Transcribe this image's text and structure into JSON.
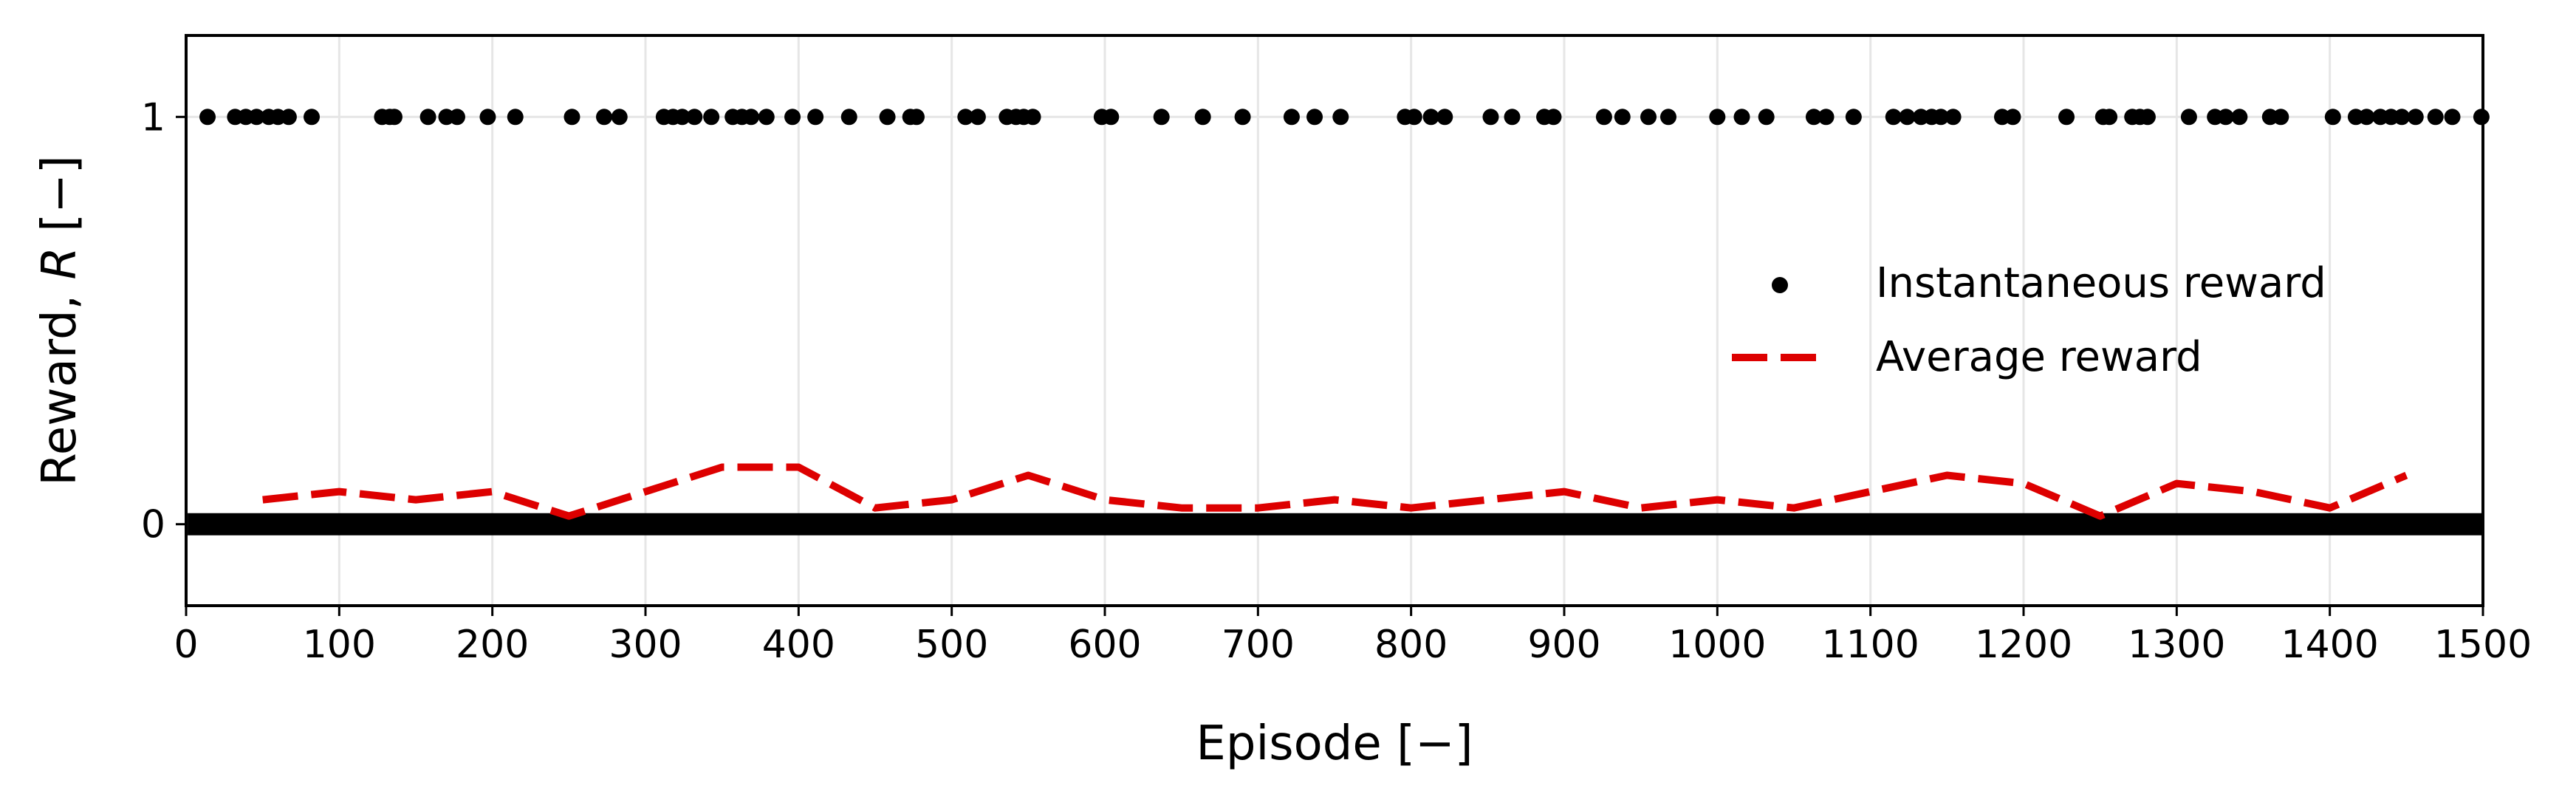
{
  "chart_data": {
    "type": "scatter",
    "xlabel": "Episode [−]",
    "ylabel_prefix": "Reward, ",
    "ylabel_symbol": "R",
    "ylabel_suffix": " [−]",
    "xlim": [
      0,
      1500
    ],
    "ylim": [
      -0.2,
      1.2
    ],
    "xticks": [
      0,
      100,
      200,
      300,
      400,
      500,
      600,
      700,
      800,
      900,
      1000,
      1100,
      1200,
      1300,
      1400,
      1500
    ],
    "yticks": [
      0,
      1
    ],
    "grid": true,
    "legend_position": "center-right",
    "colors": {
      "instant": "#000000",
      "average": "#dd0000",
      "grid": "#e6e6e6"
    },
    "series": [
      {
        "name": "Instantaneous reward",
        "kind": "scatter",
        "color": "#000000",
        "reward_one_episodes": [
          14,
          32,
          39,
          46,
          54,
          60,
          67,
          82,
          128,
          133,
          136,
          158,
          170,
          177,
          197,
          215,
          252,
          273,
          283,
          312,
          318,
          324,
          332,
          343,
          357,
          363,
          369,
          379,
          396,
          411,
          433,
          458,
          473,
          477,
          509,
          517,
          536,
          542,
          547,
          553,
          598,
          604,
          637,
          664,
          690,
          722,
          737,
          754,
          796,
          802,
          813,
          822,
          852,
          866,
          887,
          893,
          926,
          938,
          955,
          968,
          1000,
          1016,
          1032,
          1063,
          1071,
          1089,
          1115,
          1124,
          1133,
          1140,
          1146,
          1154,
          1186,
          1193,
          1228,
          1252,
          1256,
          1271,
          1276,
          1281,
          1308,
          1325,
          1332,
          1341,
          1361,
          1368,
          1402,
          1417,
          1424,
          1433,
          1440,
          1447,
          1456,
          1469,
          1480,
          1499
        ],
        "reward_zero_range": [
          1,
          1500
        ]
      },
      {
        "name": "Average reward",
        "kind": "line",
        "color": "#dd0000",
        "x": [
          50,
          100,
          150,
          200,
          250,
          300,
          350,
          400,
          450,
          500,
          550,
          600,
          650,
          700,
          750,
          800,
          850,
          900,
          950,
          1000,
          1050,
          1100,
          1150,
          1200,
          1250,
          1300,
          1350,
          1400,
          1450
        ],
        "y": [
          0.06,
          0.08,
          0.06,
          0.08,
          0.02,
          0.08,
          0.14,
          0.14,
          0.04,
          0.06,
          0.12,
          0.06,
          0.04,
          0.04,
          0.06,
          0.04,
          0.06,
          0.08,
          0.04,
          0.06,
          0.04,
          0.08,
          0.12,
          0.1,
          0.02,
          0.1,
          0.08,
          0.04,
          0.12
        ]
      }
    ]
  }
}
